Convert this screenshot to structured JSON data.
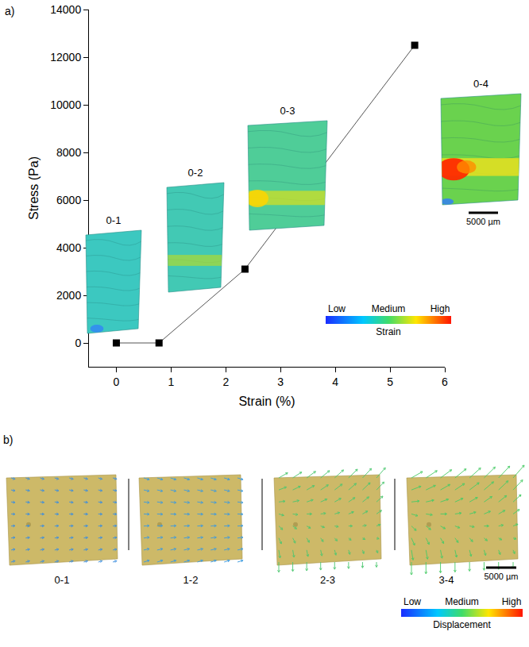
{
  "chart_data": {
    "type": "line",
    "panel_label": "a)",
    "x": [
      0,
      0.78,
      2.35,
      5.45
    ],
    "values": [
      0,
      0,
      3100,
      12500
    ],
    "x_label": "Strain (%)",
    "y_label": "Stress (Pa)",
    "xlim": [
      -0.5,
      6
    ],
    "ylim": [
      -1000,
      14000
    ],
    "xticks": [
      0,
      1,
      2,
      3,
      4,
      5,
      6
    ],
    "yticks": [
      0,
      2000,
      4000,
      6000,
      8000,
      10000,
      12000,
      14000
    ],
    "grid": false,
    "color": "#000000",
    "marker": "square",
    "line_style": "solid",
    "annotations": [
      "0-1",
      "0-2",
      "0-3",
      "0-4"
    ],
    "scale_bar": "5000 µm",
    "colorbar": {
      "labels": [
        "Low",
        "Medium",
        "High"
      ],
      "title": "Strain"
    }
  },
  "panel_b": {
    "panel_label": "b)",
    "views": [
      "0-1",
      "1-2",
      "2-3",
      "3-4"
    ],
    "scale_bar": "5000 µm",
    "colorbar": {
      "labels": [
        "Low",
        "Medium",
        "High"
      ],
      "title": "Displacement"
    }
  }
}
